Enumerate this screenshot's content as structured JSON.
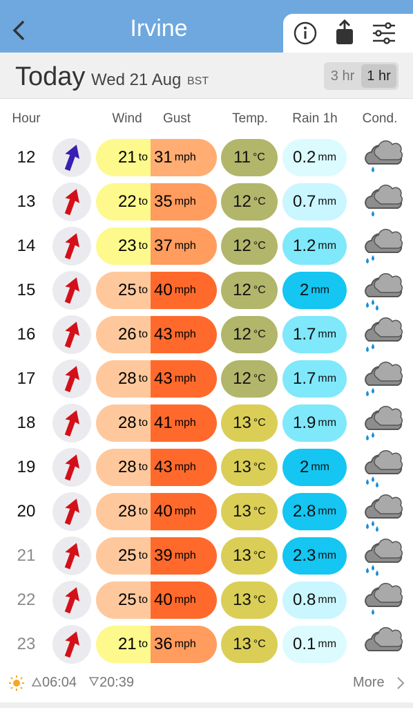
{
  "header": {
    "title": "Irvine",
    "day": "Today",
    "date": "Wed 21 Aug",
    "timezone": "BST",
    "toggle": [
      "3 hr",
      "1 hr"
    ]
  },
  "table": {
    "columns": [
      "Hour",
      "Wind",
      "Gust",
      "Temp.",
      "Rain 1h",
      "Cond."
    ],
    "units": {
      "to": "to",
      "speed": "mph",
      "temp": "°C",
      "rain": "mm"
    },
    "rows": [
      {
        "hour": 12,
        "hour_color": "#111111",
        "wind": 21,
        "gust": 31,
        "temp": 11,
        "rain": 0.2
      },
      {
        "hour": 13,
        "hour_color": "#111111",
        "wind": 22,
        "gust": 35,
        "temp": 12,
        "rain": 0.7
      },
      {
        "hour": 14,
        "hour_color": "#111111",
        "wind": 23,
        "gust": 37,
        "temp": 12,
        "rain": 1.2
      },
      {
        "hour": 15,
        "hour_color": "#111111",
        "wind": 25,
        "gust": 40,
        "temp": 12,
        "rain": 2
      },
      {
        "hour": 16,
        "hour_color": "#111111",
        "wind": 26,
        "gust": 43,
        "temp": 12,
        "rain": 1.7
      },
      {
        "hour": 17,
        "hour_color": "#111111",
        "wind": 28,
        "gust": 43,
        "temp": 12,
        "rain": 1.7
      },
      {
        "hour": 18,
        "hour_color": "#111111",
        "wind": 28,
        "gust": 41,
        "temp": 13,
        "rain": 1.9
      },
      {
        "hour": 19,
        "hour_color": "#111111",
        "wind": 28,
        "gust": 43,
        "temp": 13,
        "rain": 2
      },
      {
        "hour": 20,
        "hour_color": "#111111",
        "wind": 28,
        "gust": 40,
        "temp": 13,
        "rain": 2.8
      },
      {
        "hour": 21,
        "hour_color": "#8a8a8a",
        "wind": 25,
        "gust": 39,
        "temp": 13,
        "rain": 2.3
      },
      {
        "hour": 22,
        "hour_color": "#8a8a8a",
        "wind": 25,
        "gust": 40,
        "temp": 13,
        "rain": 0.8
      },
      {
        "hour": 23,
        "hour_color": "#8a8a8a",
        "wind": 21,
        "gust": 36,
        "temp": 13,
        "rain": 0.1
      }
    ]
  },
  "footer": {
    "sunrise": "06:04",
    "sunset": "20:39",
    "more": "More"
  }
}
